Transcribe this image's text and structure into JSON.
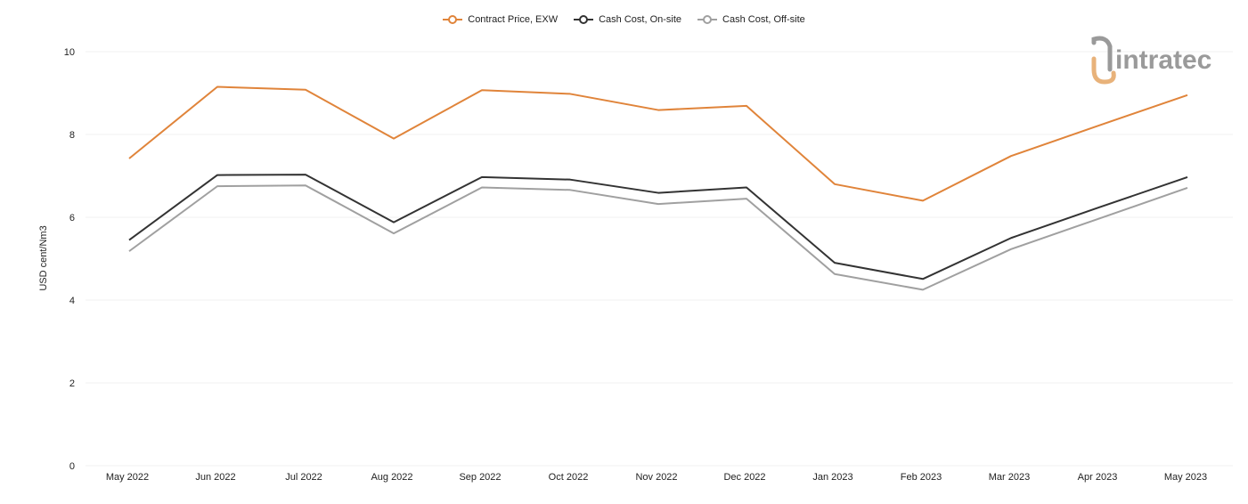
{
  "chart_data": {
    "type": "line",
    "categories": [
      "May 2022",
      "Jun 2022",
      "Jul 2022",
      "Aug 2022",
      "Sep 2022",
      "Oct 2022",
      "Nov 2022",
      "Dec 2022",
      "Jan 2023",
      "Feb 2023",
      "Mar 2023",
      "Apr 2023",
      "May 2023"
    ],
    "series": [
      {
        "name": "Contract Price, EXW",
        "color": "#e0843a",
        "values": [
          7.42,
          9.15,
          9.08,
          7.9,
          9.07,
          8.98,
          8.59,
          8.69,
          6.8,
          6.4,
          7.48,
          8.22,
          8.95
        ]
      },
      {
        "name": "Cash Cost, On-site",
        "color": "#333333",
        "values": [
          5.45,
          7.02,
          7.03,
          5.88,
          6.97,
          6.91,
          6.59,
          6.72,
          4.9,
          4.51,
          5.5,
          6.24,
          6.97
        ]
      },
      {
        "name": "Cash Cost, Off-site",
        "color": "#a0a0a0",
        "values": [
          5.18,
          6.75,
          6.77,
          5.61,
          6.72,
          6.66,
          6.32,
          6.45,
          4.63,
          4.25,
          5.23,
          5.97,
          6.71
        ]
      }
    ],
    "ylabel": "USD cent/Nm3",
    "xlabel": "",
    "ylim": [
      0,
      10
    ],
    "yticks": [
      0,
      2,
      4,
      6,
      8,
      10
    ],
    "grid": true,
    "legend_position": "top-center",
    "markers": "none"
  },
  "logo": {
    "text": "intratec",
    "color": "#9a9a9a",
    "accent": "#e8b27a"
  }
}
